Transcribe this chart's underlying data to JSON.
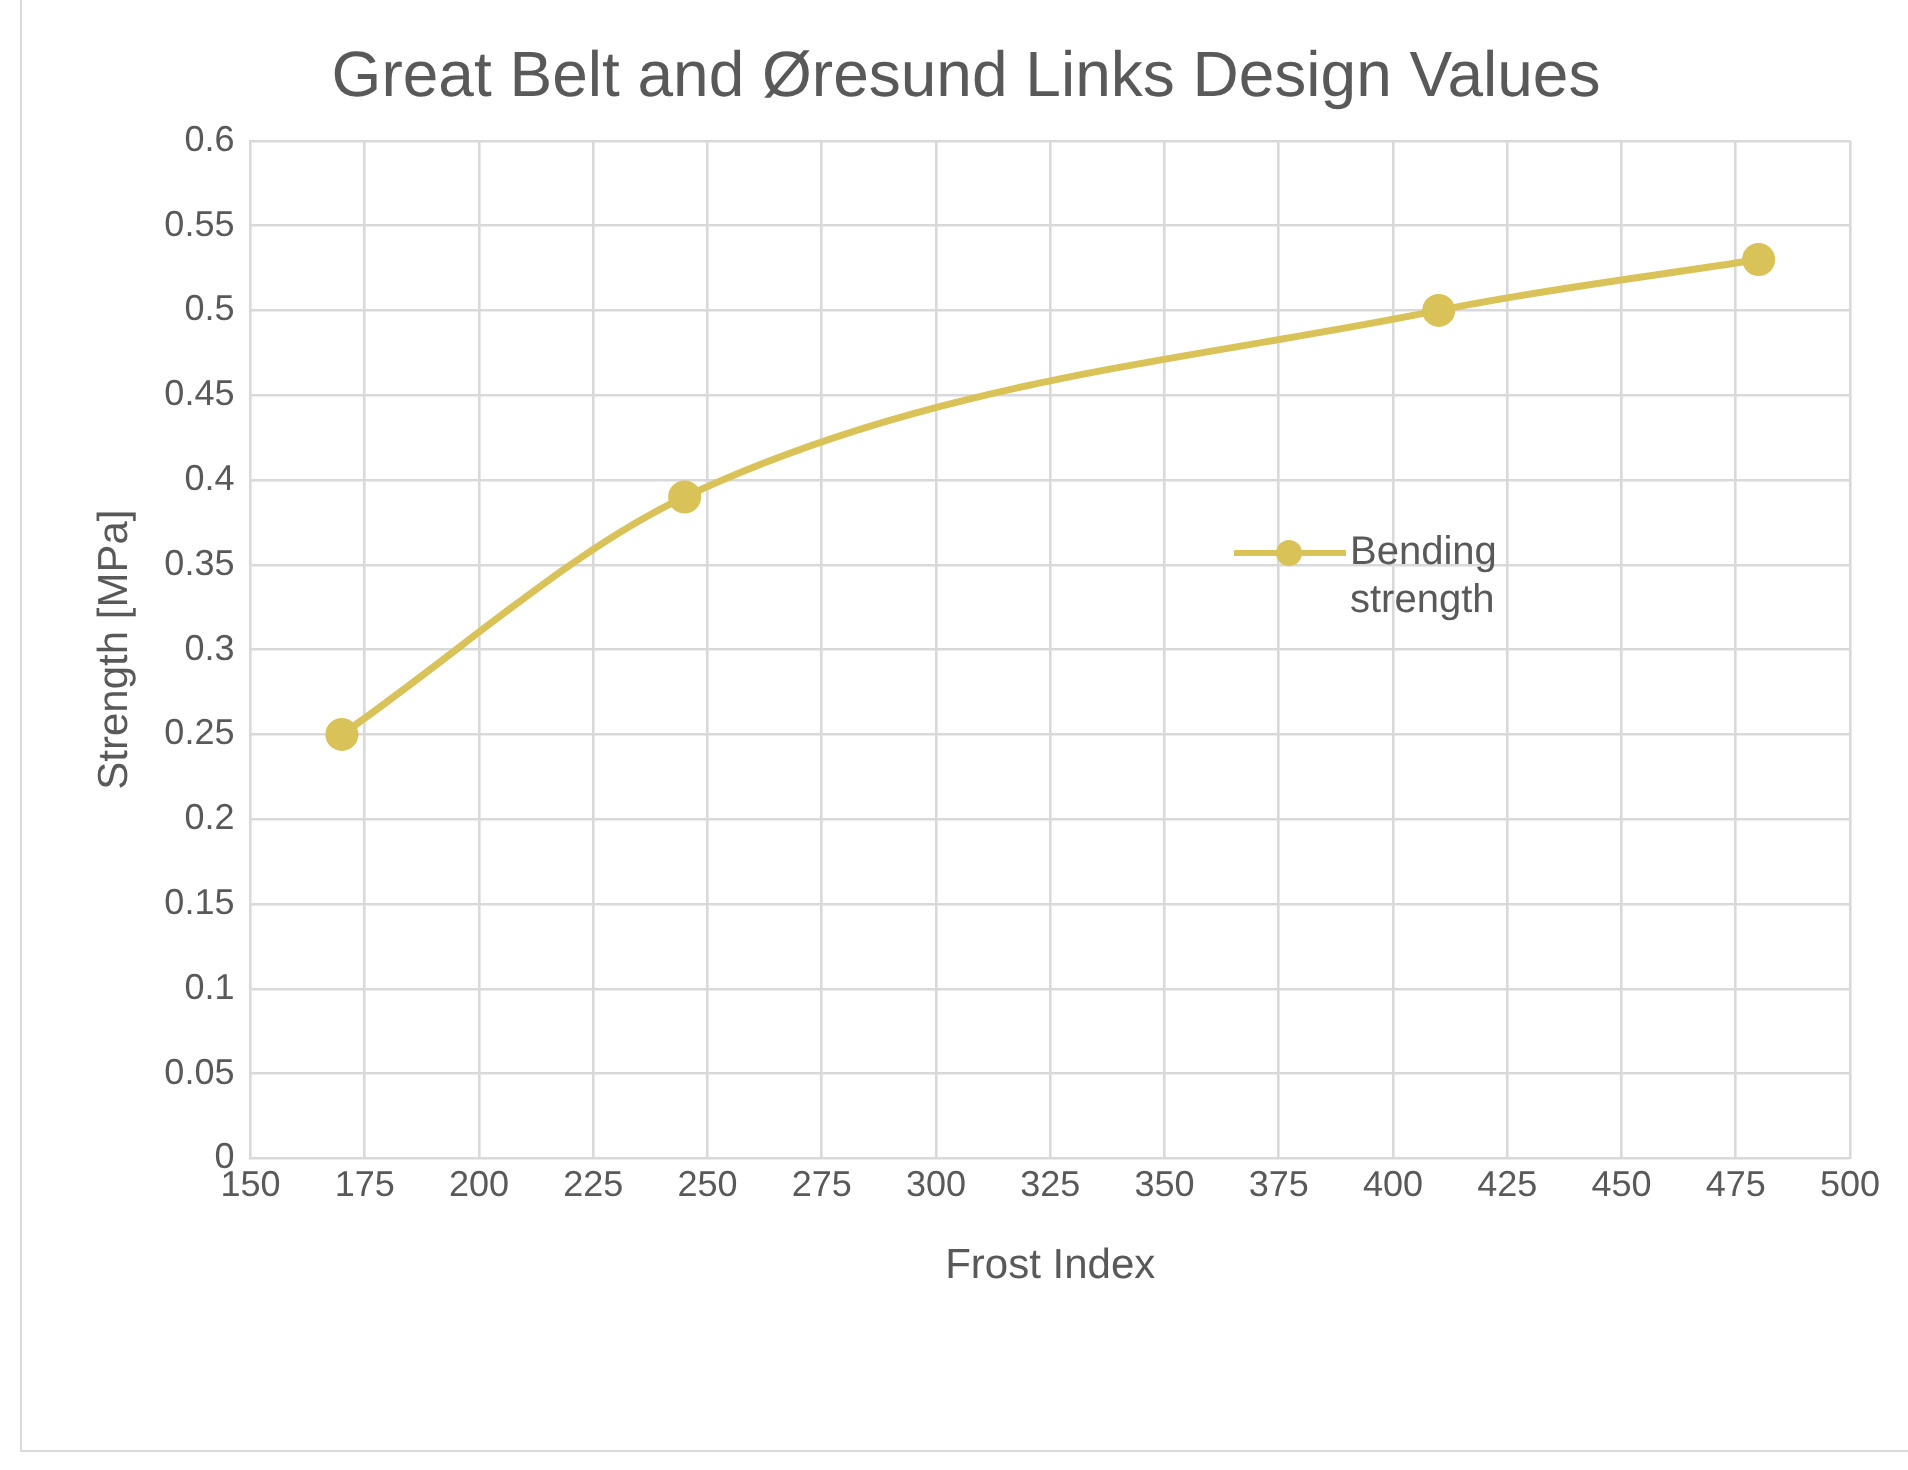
{
  "chart_data": {
    "type": "line",
    "title": "Great Belt and Øresund Links Design Values",
    "xlabel": "Frost Index",
    "ylabel": "Strength [MPa]",
    "x": [
      170,
      245,
      410,
      480
    ],
    "series": [
      {
        "name": "Bending strength",
        "color": "#d9c257",
        "values": [
          0.25,
          0.39,
          0.5,
          0.53
        ]
      }
    ],
    "xlim": [
      150,
      500
    ],
    "xticks": [
      150,
      175,
      200,
      225,
      250,
      275,
      300,
      325,
      350,
      375,
      400,
      425,
      450,
      475,
      500
    ],
    "ylim": [
      0,
      0.6
    ],
    "yticks": [
      0,
      0.05,
      0.1,
      0.15,
      0.2,
      0.25,
      0.3,
      0.35,
      0.4,
      0.45,
      0.5,
      0.55,
      0.6
    ],
    "grid": true,
    "legend": "right",
    "marker": "circle",
    "line_style": "solid"
  }
}
